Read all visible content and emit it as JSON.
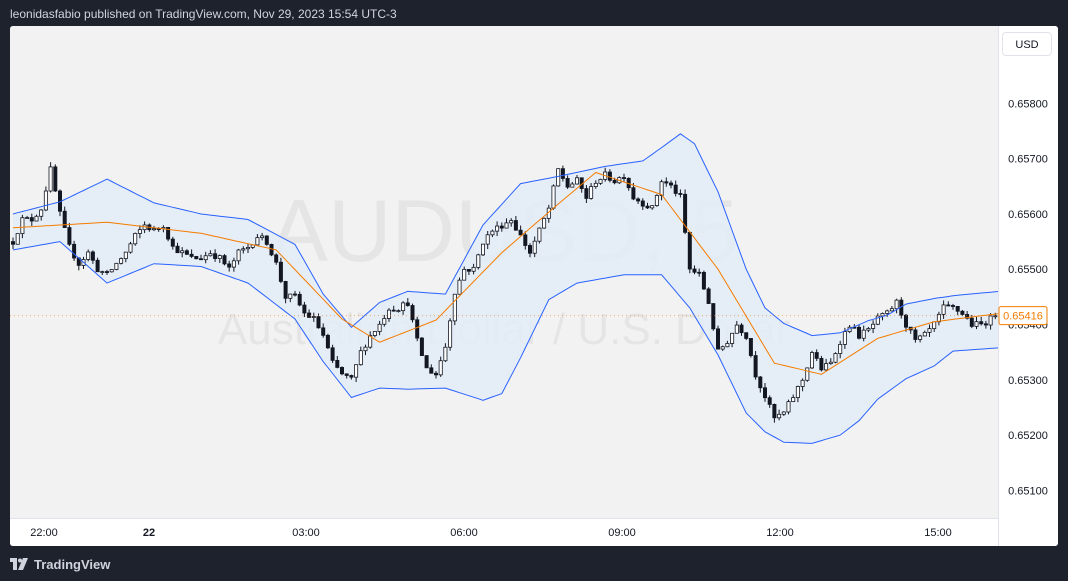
{
  "header": {
    "published_text": "leonidasfabio published on TradingView.com, Nov 29, 2023 15:54 UTC-3"
  },
  "footer": {
    "brand": "TradingView",
    "logo_icon": "tradingview-logo-icon"
  },
  "currency": "USD",
  "watermark": {
    "symbol": "AUDUSD, 5",
    "description": "Australian Dollar / U.S. Dollar"
  },
  "colors": {
    "up_candle": "#ffffff",
    "down_candle": "#131722",
    "candle_border": "#131722",
    "band": "#2962ff",
    "band_fill": "#e3ecf7",
    "basis": "#f57c00",
    "last_price": "#f57c00"
  },
  "chart_data": {
    "type": "candlestick",
    "symbol": "AUDUSD",
    "interval": "5",
    "ylim": [
      0.6505,
      0.6594
    ],
    "y_ticks": [
      "0.65100",
      "0.65200",
      "0.65300",
      "0.65400",
      "0.65500",
      "0.65600",
      "0.65700",
      "0.65800"
    ],
    "x_ticks": [
      "22:00",
      "22",
      "03:00",
      "06:00",
      "09:00",
      "12:00",
      "15:00"
    ],
    "last_price": "0.65416",
    "indicator": "Bollinger Bands",
    "anchors_close": [
      [
        0,
        0.6555
      ],
      [
        2,
        0.6559
      ],
      [
        4,
        0.6559
      ],
      [
        6,
        0.6561
      ],
      [
        8,
        0.6568
      ],
      [
        10,
        0.656
      ],
      [
        12,
        0.6554
      ],
      [
        14,
        0.6551
      ],
      [
        16,
        0.6553
      ],
      [
        18,
        0.655
      ],
      [
        20,
        0.6549
      ],
      [
        22,
        0.6551
      ],
      [
        24,
        0.6553
      ],
      [
        26,
        0.6556
      ],
      [
        28,
        0.6558
      ],
      [
        30,
        0.6557
      ],
      [
        32,
        0.6558
      ],
      [
        34,
        0.6554
      ],
      [
        36,
        0.6553
      ],
      [
        38,
        0.6552
      ],
      [
        40,
        0.6552
      ],
      [
        42,
        0.6553
      ],
      [
        44,
        0.6552
      ],
      [
        46,
        0.655
      ],
      [
        48,
        0.6553
      ],
      [
        50,
        0.6554
      ],
      [
        52,
        0.6556
      ],
      [
        54,
        0.6555
      ],
      [
        56,
        0.6551
      ],
      [
        58,
        0.6545
      ],
      [
        60,
        0.6545
      ],
      [
        62,
        0.6542
      ],
      [
        64,
        0.6541
      ],
      [
        66,
        0.6538
      ],
      [
        68,
        0.6533
      ],
      [
        70,
        0.6531
      ],
      [
        72,
        0.653
      ],
      [
        74,
        0.6535
      ],
      [
        76,
        0.6538
      ],
      [
        78,
        0.654
      ],
      [
        80,
        0.6543
      ],
      [
        82,
        0.6543
      ],
      [
        84,
        0.6544
      ],
      [
        86,
        0.6537
      ],
      [
        88,
        0.6532
      ],
      [
        90,
        0.6531
      ],
      [
        92,
        0.6536
      ],
      [
        94,
        0.6546
      ],
      [
        96,
        0.655
      ],
      [
        98,
        0.655
      ],
      [
        100,
        0.6555
      ],
      [
        102,
        0.6557
      ],
      [
        104,
        0.6558
      ],
      [
        106,
        0.6559
      ],
      [
        108,
        0.6556
      ],
      [
        110,
        0.6553
      ],
      [
        112,
        0.6557
      ],
      [
        114,
        0.6561
      ],
      [
        116,
        0.6568
      ],
      [
        118,
        0.6565
      ],
      [
        120,
        0.6566
      ],
      [
        122,
        0.6563
      ],
      [
        124,
        0.6566
      ],
      [
        126,
        0.6567
      ],
      [
        128,
        0.6566
      ],
      [
        130,
        0.6567
      ],
      [
        132,
        0.6563
      ],
      [
        134,
        0.6562
      ],
      [
        136,
        0.6561
      ],
      [
        138,
        0.6566
      ],
      [
        140,
        0.6565
      ],
      [
        142,
        0.6563
      ],
      [
        144,
        0.655
      ],
      [
        146,
        0.6549
      ],
      [
        148,
        0.6544
      ],
      [
        150,
        0.6535
      ],
      [
        152,
        0.6537
      ],
      [
        154,
        0.654
      ],
      [
        156,
        0.6538
      ],
      [
        158,
        0.6531
      ],
      [
        160,
        0.6527
      ],
      [
        162,
        0.6523
      ],
      [
        164,
        0.6524
      ],
      [
        166,
        0.6527
      ],
      [
        168,
        0.653
      ],
      [
        170,
        0.6535
      ],
      [
        172,
        0.6532
      ],
      [
        174,
        0.6533
      ],
      [
        176,
        0.6537
      ],
      [
        178,
        0.654
      ],
      [
        180,
        0.6538
      ],
      [
        182,
        0.6539
      ],
      [
        184,
        0.6541
      ],
      [
        186,
        0.6542
      ],
      [
        188,
        0.6544
      ],
      [
        190,
        0.654
      ],
      [
        192,
        0.6537
      ],
      [
        194,
        0.6538
      ],
      [
        196,
        0.654
      ],
      [
        198,
        0.6543
      ],
      [
        200,
        0.6543
      ],
      [
        202,
        0.6542
      ],
      [
        204,
        0.654
      ],
      [
        206,
        0.654
      ],
      [
        208,
        0.6541
      ],
      [
        210,
        0.6543
      ]
    ],
    "anchors_basis": [
      [
        0,
        0.65575
      ],
      [
        20,
        0.65585
      ],
      [
        40,
        0.65565
      ],
      [
        56,
        0.65535
      ],
      [
        70,
        0.6541
      ],
      [
        78,
        0.65368
      ],
      [
        90,
        0.65408
      ],
      [
        104,
        0.6553
      ],
      [
        116,
        0.65618
      ],
      [
        124,
        0.65675
      ],
      [
        138,
        0.65635
      ],
      [
        150,
        0.655
      ],
      [
        162,
        0.6533
      ],
      [
        172,
        0.6531
      ],
      [
        184,
        0.65375
      ],
      [
        196,
        0.65405
      ],
      [
        210,
        0.6542
      ]
    ],
    "anchors_upper": [
      [
        0,
        0.656
      ],
      [
        10,
        0.65622
      ],
      [
        20,
        0.65663
      ],
      [
        30,
        0.6562
      ],
      [
        40,
        0.656
      ],
      [
        50,
        0.6559
      ],
      [
        60,
        0.65545
      ],
      [
        66,
        0.65455
      ],
      [
        72,
        0.65395
      ],
      [
        78,
        0.6544
      ],
      [
        84,
        0.6546
      ],
      [
        92,
        0.65455
      ],
      [
        100,
        0.6558
      ],
      [
        108,
        0.65655
      ],
      [
        116,
        0.65668
      ],
      [
        126,
        0.65686
      ],
      [
        134,
        0.65696
      ],
      [
        138,
        0.6572
      ],
      [
        142,
        0.65745
      ],
      [
        145,
        0.65727
      ],
      [
        150,
        0.6564
      ],
      [
        156,
        0.655
      ],
      [
        160,
        0.6543
      ],
      [
        164,
        0.65402
      ],
      [
        170,
        0.6538
      ],
      [
        176,
        0.65385
      ],
      [
        182,
        0.65407
      ],
      [
        186,
        0.65417
      ],
      [
        190,
        0.65437
      ],
      [
        196,
        0.65447
      ],
      [
        200,
        0.65452
      ],
      [
        206,
        0.65457
      ],
      [
        210,
        0.6546
      ]
    ],
    "anchors_lower": [
      [
        0,
        0.65535
      ],
      [
        10,
        0.6555
      ],
      [
        20,
        0.65475
      ],
      [
        30,
        0.6551
      ],
      [
        40,
        0.65505
      ],
      [
        50,
        0.65475
      ],
      [
        60,
        0.6541
      ],
      [
        66,
        0.65333
      ],
      [
        72,
        0.65268
      ],
      [
        78,
        0.65285
      ],
      [
        84,
        0.65283
      ],
      [
        92,
        0.65285
      ],
      [
        100,
        0.65263
      ],
      [
        104,
        0.65275
      ],
      [
        108,
        0.6534
      ],
      [
        114,
        0.65445
      ],
      [
        120,
        0.65475
      ],
      [
        130,
        0.6549
      ],
      [
        138,
        0.6549
      ],
      [
        144,
        0.6543
      ],
      [
        150,
        0.65345
      ],
      [
        156,
        0.6524
      ],
      [
        160,
        0.65206
      ],
      [
        164,
        0.65187
      ],
      [
        170,
        0.65185
      ],
      [
        176,
        0.652
      ],
      [
        180,
        0.65226
      ],
      [
        184,
        0.65265
      ],
      [
        190,
        0.65302
      ],
      [
        196,
        0.65325
      ],
      [
        200,
        0.65352
      ],
      [
        210,
        0.65358
      ]
    ]
  }
}
